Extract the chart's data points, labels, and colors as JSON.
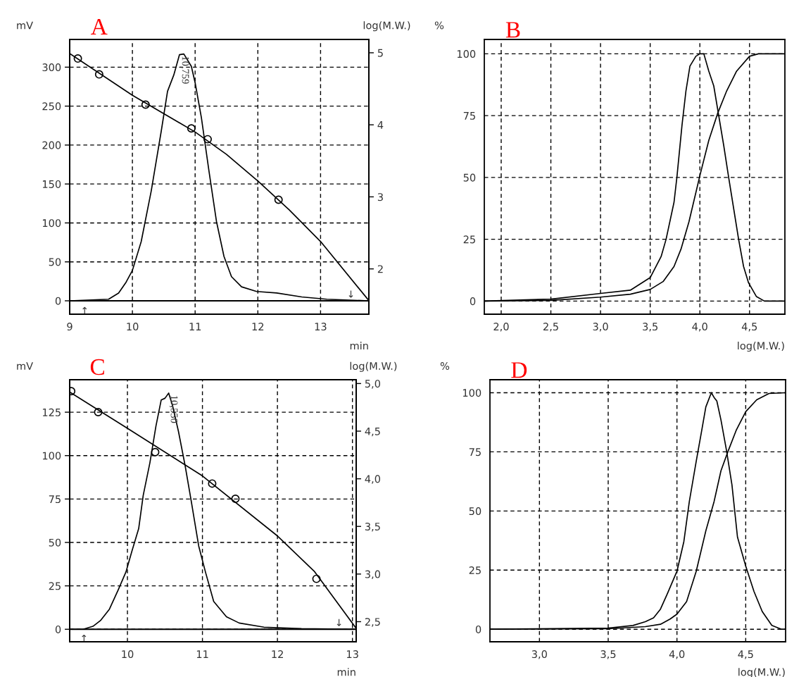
{
  "chart_data": [
    {
      "type": "line",
      "title": "A",
      "xlabel": "min",
      "ylabel": "mV",
      "y2label": "log(M.W.)",
      "xlim": [
        9,
        13.77
      ],
      "xticks": [
        9,
        10,
        11,
        12,
        13
      ],
      "ylim": [
        -17.2,
        335.6
      ],
      "yticks": [
        0,
        50,
        100,
        150,
        200,
        250,
        300
      ],
      "y2lim": [
        1.371,
        5.185
      ],
      "y2ticks": [
        2,
        3,
        4,
        5
      ],
      "grid": true,
      "legend": false,
      "ref_lines": [
        {
          "axis": "y",
          "value": 0,
          "color": "#000000",
          "line_style": "solid"
        }
      ],
      "annotations": [
        {
          "text": "10,759",
          "x": 10.759,
          "y": 317
        },
        "↑",
        "↓"
      ],
      "series": [
        {
          "color": "#000000",
          "x": [
            9,
            9.62,
            9.78,
            9.9,
            10.0,
            10.14,
            10.3,
            10.46,
            10.56,
            10.66,
            10.75,
            10.82,
            10.94,
            11.0,
            11.1,
            11.22,
            11.34,
            11.46,
            11.58,
            11.74,
            11.98,
            12.3,
            12.7,
            13.1,
            13.77
          ],
          "values": [
            0,
            2,
            10,
            24,
            39,
            76,
            141,
            218,
            269,
            290,
            316,
            317,
            301,
            280,
            235,
            167,
            102,
            57,
            31,
            18,
            12,
            10,
            5,
            2,
            0
          ]
        },
        {
          "axis": "y2",
          "color": "#000000",
          "x": [
            9,
            10,
            11,
            11.5,
            12,
            12.5,
            13,
            13.77
          ],
          "values": [
            4.99,
            4.41,
            3.9,
            3.59,
            3.22,
            2.82,
            2.38,
            1.56
          ]
        },
        {
          "type": "scatter",
          "axis": "y2",
          "marker": "circle",
          "color": "#000000",
          "x": [
            9.13,
            9.47,
            10.21,
            10.94,
            11.2,
            12.33
          ],
          "values": [
            4.92,
            4.7,
            4.28,
            3.95,
            3.8,
            2.96
          ]
        }
      ]
    },
    {
      "type": "line",
      "title": "B",
      "xlabel": "log(M.W.)",
      "ylabel": "%",
      "xlim": [
        1.83,
        4.856
      ],
      "xticks": [
        {
          "value": 2,
          "label": "2,0"
        },
        {
          "value": 2.5,
          "label": "2,5"
        },
        {
          "value": 3,
          "label": "3,0"
        },
        {
          "value": 3.5,
          "label": "3,5"
        },
        {
          "value": 4,
          "label": "4,0"
        },
        {
          "value": 4.5,
          "label": "4,5"
        }
      ],
      "ylim": [
        -5.3,
        105.8
      ],
      "yticks": [
        0,
        25,
        50,
        75,
        100
      ],
      "grid": true,
      "legend": false,
      "series": [
        {
          "color": "#000000",
          "x": [
            1.83,
            2.5,
            3.0,
            3.3,
            3.5,
            3.61,
            3.66,
            3.74,
            3.77,
            3.82,
            3.86,
            3.9,
            3.96,
            4.0,
            4.04,
            4.09,
            4.14,
            4.19,
            4.24,
            4.29,
            4.34,
            4.39,
            4.44,
            4.49,
            4.57,
            4.65,
            4.856
          ],
          "values": [
            0,
            0.8,
            3.1,
            4.4,
            9.5,
            18,
            25,
            40,
            50.5,
            71,
            85,
            95,
            99,
            100,
            100,
            93,
            87,
            75,
            63,
            50,
            37.5,
            25,
            14,
            7.4,
            1.8,
            0,
            0
          ]
        },
        {
          "color": "#000000",
          "x": [
            1.83,
            2.5,
            3.0,
            3.3,
            3.5,
            3.63,
            3.74,
            3.81,
            3.89,
            4.0,
            4.09,
            4.18,
            4.27,
            4.37,
            4.5,
            4.59,
            4.856
          ],
          "values": [
            0,
            0.3,
            1.6,
            2.8,
            4.7,
            7.9,
            14,
            21,
            32,
            50.7,
            65,
            76,
            85,
            93,
            99,
            100,
            100
          ]
        }
      ]
    },
    {
      "type": "line",
      "title": "C",
      "xlabel": "min",
      "ylabel": "mV",
      "y2label": "log(M.W.)",
      "xlim": [
        9.23,
        13.05
      ],
      "xticks": [
        10,
        11,
        12,
        13
      ],
      "ylim": [
        -7.2,
        143.7
      ],
      "yticks": [
        0,
        25,
        50,
        75,
        100,
        125
      ],
      "y2lim": [
        2.289,
        5.04
      ],
      "y2ticks": [
        {
          "value": 2.5,
          "label": "2,5"
        },
        {
          "value": 3,
          "label": "3,0"
        },
        {
          "value": 3.5,
          "label": "3,5"
        },
        {
          "value": 4,
          "label": "4,0"
        },
        {
          "value": 4.5,
          "label": "4,5"
        },
        {
          "value": 5,
          "label": "5,0"
        }
      ],
      "grid": true,
      "legend": false,
      "ref_lines": [
        {
          "axis": "y",
          "value": 0,
          "color": "#000000",
          "line_style": "solid"
        }
      ],
      "annotations": [
        {
          "text": "10,550",
          "x": 10.55,
          "y": 136
        },
        "↑",
        "↓"
      ],
      "series": [
        {
          "color": "#000000",
          "x": [
            9.23,
            9.41,
            9.54,
            9.64,
            9.76,
            9.88,
            9.98,
            10.06,
            10.15,
            10.21,
            10.3,
            10.38,
            10.45,
            10.5,
            10.55,
            10.6,
            10.68,
            10.77,
            10.85,
            10.95,
            11.04,
            11.15,
            11.32,
            11.49,
            11.82,
            12.32,
            13.05
          ],
          "values": [
            0,
            0,
            1.7,
            5,
            11.6,
            23,
            33,
            45,
            58,
            77,
            96,
            117,
            132,
            133,
            136,
            129,
            114,
            94,
            74,
            48,
            33,
            16,
            7.2,
            3.6,
            1.2,
            0.4,
            0
          ]
        },
        {
          "axis": "y2",
          "color": "#000000",
          "x": [
            9.23,
            10.0,
            11.0,
            12.0,
            12.49,
            13.05
          ],
          "values": [
            4.91,
            4.53,
            4.03,
            3.4,
            3.03,
            2.43
          ]
        },
        {
          "type": "scatter",
          "axis": "y2",
          "marker": "circle",
          "color": "#000000",
          "x": [
            9.25,
            9.61,
            10.37,
            11.13,
            11.44,
            12.52
          ],
          "values": [
            4.92,
            4.7,
            4.28,
            3.95,
            3.79,
            2.95
          ]
        }
      ]
    },
    {
      "type": "line",
      "title": "D",
      "xlabel": "log(M.W.)",
      "ylabel": "%",
      "xlim": [
        2.64,
        4.79
      ],
      "xticks": [
        {
          "value": 3,
          "label": "3,0"
        },
        {
          "value": 3.5,
          "label": "3,5"
        },
        {
          "value": 4,
          "label": "4,0"
        },
        {
          "value": 4.5,
          "label": "4,5"
        }
      ],
      "ylim": [
        -5.3,
        105.5
      ],
      "yticks": [
        0,
        25,
        50,
        75,
        100
      ],
      "grid": true,
      "legend": false,
      "series": [
        {
          "color": "#000000",
          "x": [
            2.64,
            3.5,
            3.68,
            3.77,
            3.83,
            3.88,
            3.93,
            4.0,
            4.05,
            4.09,
            4.14,
            4.18,
            4.21,
            4.25,
            4.27,
            4.29,
            4.32,
            4.36,
            4.4,
            4.44,
            4.5,
            4.56,
            4.62,
            4.69,
            4.76,
            4.79
          ],
          "values": [
            0,
            0.5,
            1.6,
            3.2,
            4.8,
            8.5,
            15,
            24.5,
            37,
            54,
            71,
            84,
            94,
            100,
            98,
            96.5,
            88.5,
            75.7,
            61,
            39,
            26.7,
            16,
            7.5,
            1.6,
            0,
            0
          ]
        },
        {
          "color": "#000000",
          "x": [
            2.64,
            3.5,
            3.77,
            3.88,
            3.95,
            4.0,
            4.07,
            4.14,
            4.21,
            4.27,
            4.32,
            4.37,
            4.43,
            4.5,
            4.58,
            4.67,
            4.79
          ],
          "values": [
            0,
            0.2,
            1.1,
            2.1,
            4.3,
            6.4,
            11.7,
            24.5,
            41.6,
            54,
            67,
            75,
            84,
            92,
            97,
            99.7,
            100
          ]
        }
      ]
    }
  ]
}
